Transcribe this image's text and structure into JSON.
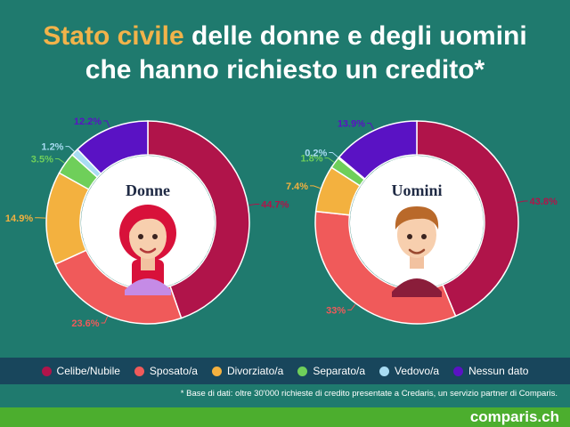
{
  "title": {
    "accent": "Stato civile",
    "rest": " delle donne e degli uomini",
    "line2": "che hanno richiesto un credito*"
  },
  "chart_data": {
    "type": "pie",
    "categories": [
      "Celibe/Nubile",
      "Sposato/a",
      "Divorziato/a",
      "Separato/a",
      "Vedovo/a",
      "Nessun dato"
    ],
    "colors": [
      "#b0144a",
      "#f05a5a",
      "#f3b13f",
      "#6fcf5a",
      "#a8dcf2",
      "#5a12c4"
    ],
    "series": [
      {
        "name": "Donne",
        "values": [
          44.7,
          23.6,
          14.9,
          3.5,
          1.2,
          12.2
        ],
        "labels": [
          "44.7%",
          "23.6%",
          "14.9%",
          "3.5%",
          "1.2%",
          "12.2%"
        ]
      },
      {
        "name": "Uomini",
        "values": [
          43.8,
          33,
          7.4,
          1.8,
          0.2,
          13.9
        ],
        "labels": [
          "43.8%",
          "33%",
          "7.4%",
          "1.8%",
          "0.2%",
          "13.9%"
        ]
      }
    ],
    "legend_position": "bottom"
  },
  "footnote": "* Base di dati: oltre 30'000 richieste di credito presentate a Credaris, un servizio partner di Comparis.",
  "brand": "comparis.ch"
}
